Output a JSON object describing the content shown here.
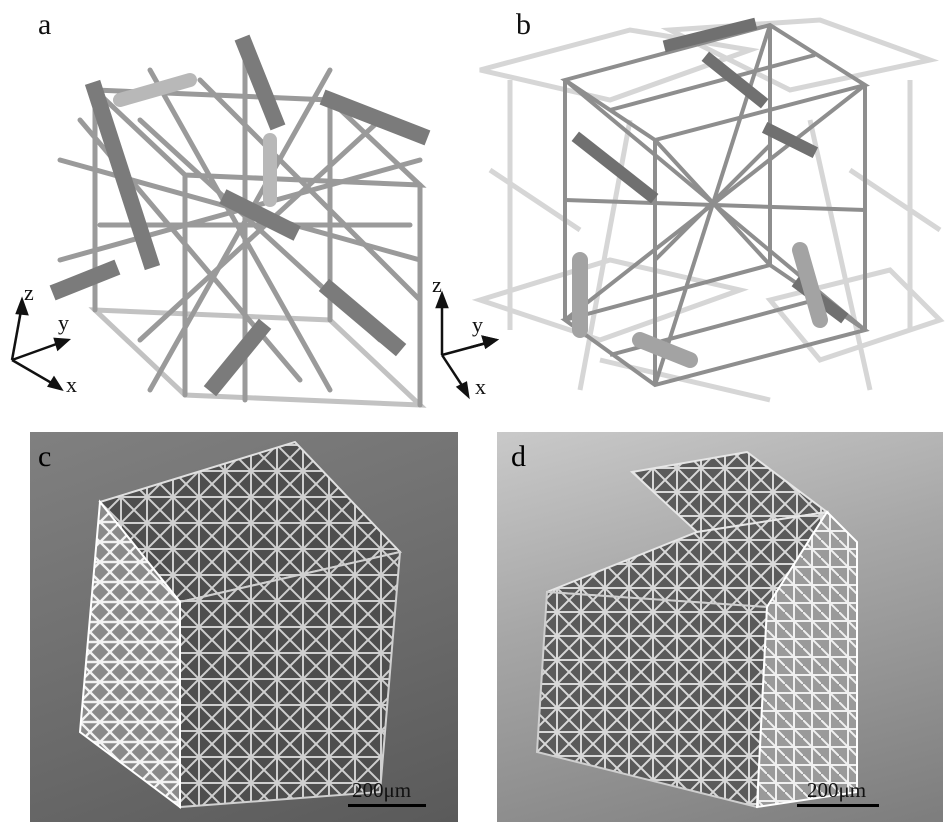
{
  "panels": {
    "a": {
      "label": "a"
    },
    "b": {
      "label": "b"
    },
    "c": {
      "label": "c",
      "scale_bar": "200μm"
    },
    "d": {
      "label": "d",
      "scale_bar": "200μm"
    }
  },
  "axes": {
    "z": "z",
    "y": "y",
    "x": "x"
  },
  "colors": {
    "strut": "#a9a9a9",
    "strut_dark": "#6f6f6f",
    "ghost": "#d4d4d4",
    "sem_bg": "#7a7a7a"
  }
}
